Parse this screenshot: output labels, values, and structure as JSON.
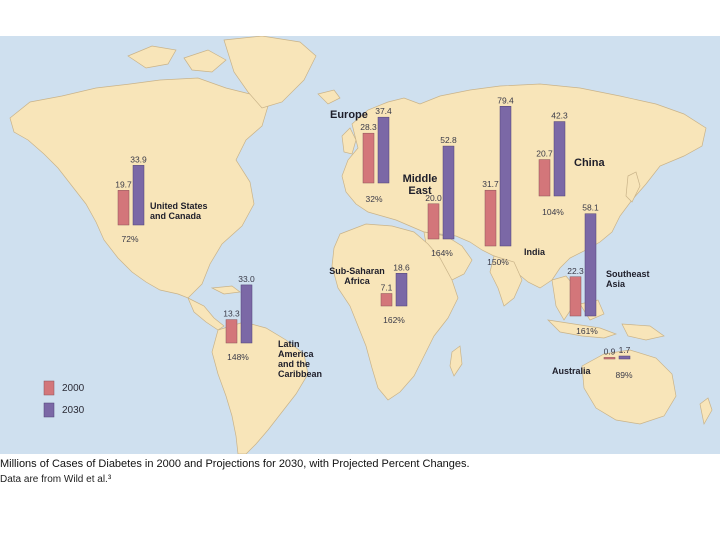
{
  "caption": {
    "title": "Millions of Cases of Diabetes in 2000 and Projections for 2030, with Projected Percent Changes.",
    "source": "Data are from Wild et al.³"
  },
  "legend": {
    "items": [
      {
        "label": "2000",
        "color": "#d3767a"
      },
      {
        "label": "2030",
        "color": "#7b68a6"
      }
    ]
  },
  "colors": {
    "ocean": "#cfe0ef",
    "land": "#f8e5b9",
    "bar_2000": "#d3767a",
    "bar_2030": "#7b68a6"
  },
  "chart_data": {
    "type": "bar",
    "series": [
      {
        "name": "2000",
        "color": "#d3767a"
      },
      {
        "name": "2030",
        "color": "#7b68a6"
      }
    ],
    "regions": [
      {
        "id": "us-canada",
        "name": "United States and Canada",
        "name_lines": [
          "United States",
          "and Canada"
        ],
        "v2000": 19.7,
        "v2030": 33.9,
        "v2000_label": "19.7",
        "v2030_label": "33.9",
        "change": "72%"
      },
      {
        "id": "latin-america",
        "name": "Latin America and the Caribbean",
        "name_lines": [
          "Latin",
          "America",
          "and the",
          "Caribbean"
        ],
        "v2000": 13.3,
        "v2030": 33.0,
        "v2000_label": "13.3",
        "v2030_label": "33.0",
        "change": "148%"
      },
      {
        "id": "europe",
        "name": "Europe",
        "name_lines": [
          "Europe"
        ],
        "v2000": 28.3,
        "v2030": 37.4,
        "v2000_label": "28.3",
        "v2030_label": "37.4",
        "change": "32%"
      },
      {
        "id": "sub-saharan-africa",
        "name": "Sub-Saharan Africa",
        "name_lines": [
          "Sub-Saharan",
          "Africa"
        ],
        "v2000": 7.1,
        "v2030": 18.6,
        "v2000_label": "7.1",
        "v2030_label": "18.6",
        "change": "162%"
      },
      {
        "id": "middle-east",
        "name": "Middle East",
        "name_lines": [
          "Middle",
          "East"
        ],
        "v2000": 20.0,
        "v2030": 52.8,
        "v2000_label": "20.0",
        "v2030_label": "52.8",
        "change": "164%"
      },
      {
        "id": "india",
        "name": "India",
        "name_lines": [
          "India"
        ],
        "v2000": 31.7,
        "v2030": 79.4,
        "v2000_label": "31.7",
        "v2030_label": "79.4",
        "change": "150%"
      },
      {
        "id": "china",
        "name": "China",
        "name_lines": [
          "China"
        ],
        "v2000": 20.7,
        "v2030": 42.3,
        "v2000_label": "20.7",
        "v2030_label": "42.3",
        "change": "104%"
      },
      {
        "id": "southeast-asia",
        "name": "Southeast Asia",
        "name_lines": [
          "Southeast",
          "Asia"
        ],
        "v2000": 22.3,
        "v2030": 58.1,
        "v2000_label": "22.3",
        "v2030_label": "58.1",
        "change": "161%"
      },
      {
        "id": "australia",
        "name": "Australia",
        "name_lines": [
          "Australia"
        ],
        "v2000": 0.9,
        "v2030": 1.7,
        "v2000_label": "0.9",
        "v2030_label": "1.7",
        "change": "89%"
      }
    ]
  }
}
